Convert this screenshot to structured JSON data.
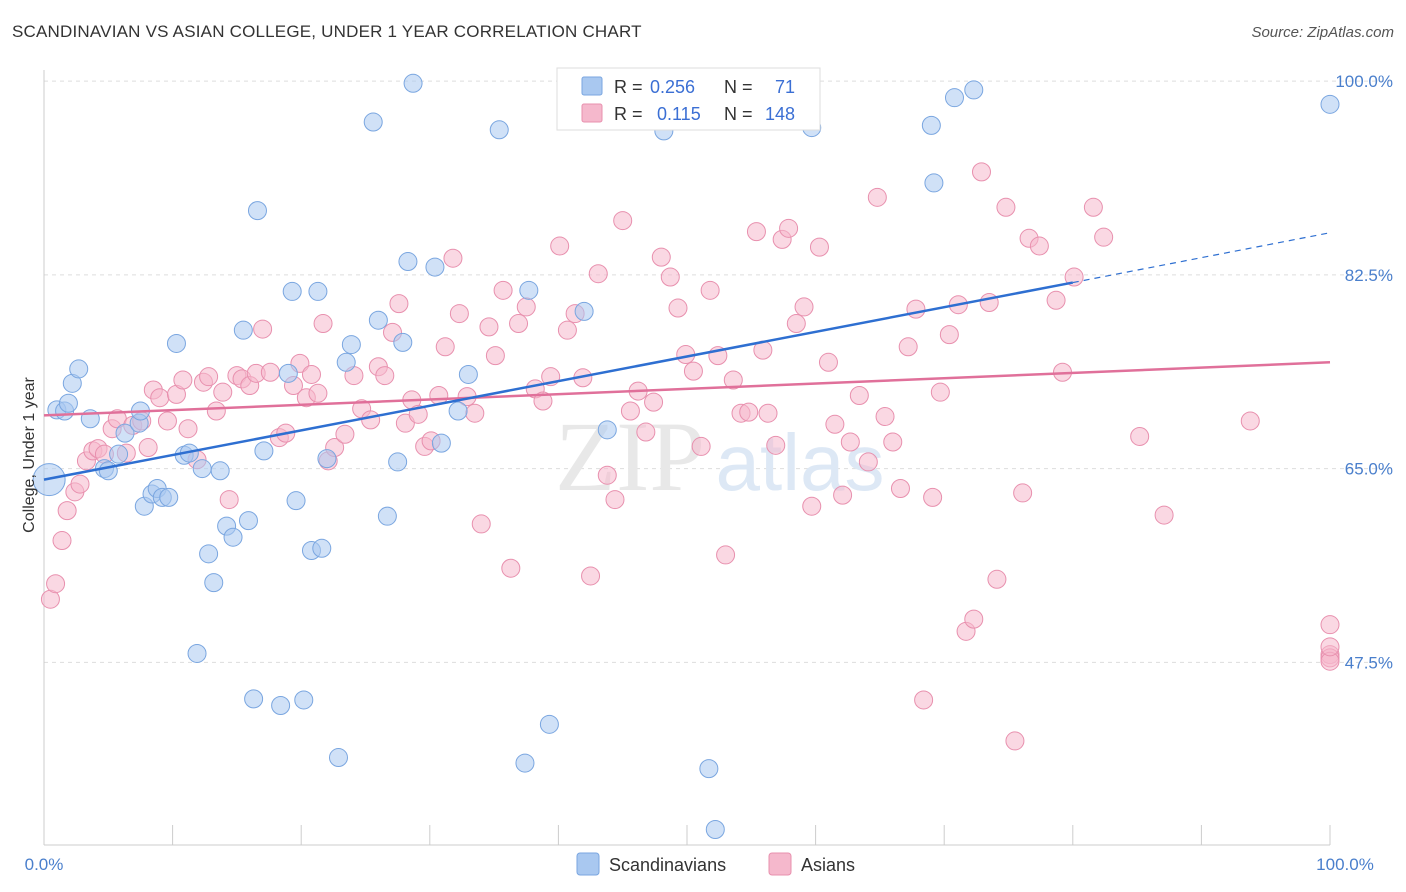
{
  "header": {
    "title": "SCANDINAVIAN VS ASIAN COLLEGE, UNDER 1 YEAR CORRELATION CHART",
    "source": "Source: ZipAtlas.com"
  },
  "watermark": {
    "text_zip": "ZIP",
    "text_atlas": "atlas"
  },
  "stats_box": {
    "rows": [
      {
        "r_label": "R =",
        "r_value": "0.256",
        "n_label": "N =",
        "n_value": "71",
        "color": "#a9c8f0"
      },
      {
        "r_label": "R =",
        "r_value": "0.115",
        "n_label": "N =",
        "n_value": "148",
        "color": "#f5b8cc"
      }
    ]
  },
  "chart_data": {
    "type": "scatter",
    "title": "SCANDINAVIAN VS ASIAN COLLEGE, UNDER 1 YEAR CORRELATION CHART",
    "xlabel": "",
    "ylabel": "College, Under 1 year",
    "xlim": [
      0,
      100
    ],
    "ylim": [
      31,
      101
    ],
    "x_tick_labels": [
      "0.0%",
      "100.0%"
    ],
    "y_ticks": [
      47.5,
      65.0,
      82.5,
      100.0
    ],
    "y_tick_labels": [
      "47.5%",
      "65.0%",
      "82.5%",
      "100.0%"
    ],
    "grid": true,
    "legend_position": "bottom-center",
    "series": [
      {
        "name": "Scandinavians",
        "color": "#a9c8f0",
        "stroke": "#7aa6e0",
        "line_color": "#2e6fd1",
        "trend": {
          "x0": 0,
          "y0": 64.0,
          "x1": 80,
          "y1": 81.8,
          "dash_to_x": 100,
          "dash_to_y": 86.3
        },
        "points": [
          [
            0.4,
            64.0
          ],
          [
            1.0,
            70.3
          ],
          [
            1.6,
            70.2
          ],
          [
            1.9,
            70.9
          ],
          [
            2.2,
            72.7
          ],
          [
            2.7,
            74.0
          ],
          [
            3.6,
            69.5
          ],
          [
            4.7,
            65.0
          ],
          [
            5.0,
            64.8
          ],
          [
            5.8,
            66.3
          ],
          [
            6.3,
            68.2
          ],
          [
            7.4,
            69.1
          ],
          [
            7.5,
            70.2
          ],
          [
            7.8,
            61.6
          ],
          [
            8.4,
            62.7
          ],
          [
            8.8,
            63.2
          ],
          [
            9.2,
            62.4
          ],
          [
            9.7,
            62.4
          ],
          [
            10.3,
            76.3
          ],
          [
            10.9,
            66.2
          ],
          [
            11.3,
            66.4
          ],
          [
            11.9,
            48.3
          ],
          [
            12.3,
            65.0
          ],
          [
            12.8,
            57.3
          ],
          [
            13.2,
            54.7
          ],
          [
            13.7,
            64.8
          ],
          [
            14.2,
            59.8
          ],
          [
            14.7,
            58.8
          ],
          [
            15.5,
            77.5
          ],
          [
            15.9,
            60.3
          ],
          [
            16.3,
            44.2
          ],
          [
            16.6,
            88.3
          ],
          [
            17.1,
            66.6
          ],
          [
            18.4,
            43.6
          ],
          [
            19.0,
            73.6
          ],
          [
            19.3,
            81.0
          ],
          [
            19.6,
            62.1
          ],
          [
            20.2,
            44.1
          ],
          [
            20.8,
            57.6
          ],
          [
            21.3,
            81.0
          ],
          [
            21.6,
            57.8
          ],
          [
            22.0,
            65.9
          ],
          [
            22.9,
            38.9
          ],
          [
            23.5,
            74.6
          ],
          [
            23.9,
            76.2
          ],
          [
            25.6,
            96.3
          ],
          [
            26.0,
            78.4
          ],
          [
            26.7,
            60.7
          ],
          [
            27.5,
            65.6
          ],
          [
            27.9,
            76.4
          ],
          [
            28.3,
            83.7
          ],
          [
            28.7,
            99.8
          ],
          [
            30.4,
            83.2
          ],
          [
            30.9,
            67.3
          ],
          [
            32.2,
            70.2
          ],
          [
            33.0,
            73.5
          ],
          [
            35.4,
            95.6
          ],
          [
            37.4,
            38.4
          ],
          [
            37.7,
            81.1
          ],
          [
            39.3,
            41.9
          ],
          [
            42.0,
            79.2
          ],
          [
            43.8,
            68.5
          ],
          [
            48.2,
            95.5
          ],
          [
            51.7,
            37.9
          ],
          [
            52.2,
            32.4
          ],
          [
            59.7,
            95.8
          ],
          [
            69.0,
            96.0
          ],
          [
            69.2,
            90.8
          ],
          [
            70.8,
            98.5
          ],
          [
            72.3,
            99.2
          ],
          [
            100.0,
            97.9
          ]
        ]
      },
      {
        "name": "Asians",
        "color": "#f5b8cc",
        "stroke": "#e890ae",
        "line_color": "#e0709a",
        "trend": {
          "x0": 0,
          "y0": 69.8,
          "x1": 100,
          "y1": 74.6
        },
        "points": [
          [
            0.5,
            53.2
          ],
          [
            0.9,
            54.6
          ],
          [
            1.4,
            58.5
          ],
          [
            1.8,
            61.2
          ],
          [
            2.4,
            62.9
          ],
          [
            2.8,
            63.6
          ],
          [
            3.3,
            65.7
          ],
          [
            3.8,
            66.6
          ],
          [
            4.2,
            66.8
          ],
          [
            4.7,
            66.3
          ],
          [
            5.3,
            68.6
          ],
          [
            5.7,
            69.5
          ],
          [
            6.4,
            66.4
          ],
          [
            6.9,
            68.9
          ],
          [
            7.6,
            69.3
          ],
          [
            8.1,
            66.9
          ],
          [
            8.5,
            72.1
          ],
          [
            9.0,
            71.4
          ],
          [
            9.6,
            69.3
          ],
          [
            10.3,
            71.7
          ],
          [
            10.8,
            73.0
          ],
          [
            11.2,
            68.6
          ],
          [
            11.9,
            65.8
          ],
          [
            12.4,
            72.8
          ],
          [
            12.8,
            73.3
          ],
          [
            13.4,
            70.2
          ],
          [
            13.9,
            71.9
          ],
          [
            14.4,
            62.2
          ],
          [
            15.0,
            73.4
          ],
          [
            15.4,
            73.1
          ],
          [
            16.0,
            72.5
          ],
          [
            16.5,
            73.6
          ],
          [
            17.0,
            77.6
          ],
          [
            17.6,
            73.7
          ],
          [
            18.3,
            67.8
          ],
          [
            18.8,
            68.2
          ],
          [
            19.4,
            72.5
          ],
          [
            19.9,
            74.5
          ],
          [
            20.4,
            71.4
          ],
          [
            20.8,
            73.5
          ],
          [
            21.3,
            71.8
          ],
          [
            21.7,
            78.1
          ],
          [
            22.1,
            65.7
          ],
          [
            22.6,
            66.9
          ],
          [
            23.4,
            68.1
          ],
          [
            24.1,
            73.4
          ],
          [
            24.7,
            70.4
          ],
          [
            25.4,
            69.4
          ],
          [
            26.0,
            74.2
          ],
          [
            26.5,
            73.4
          ],
          [
            27.1,
            77.3
          ],
          [
            27.6,
            79.9
          ],
          [
            28.1,
            69.1
          ],
          [
            28.6,
            71.2
          ],
          [
            29.1,
            69.9
          ],
          [
            29.6,
            67.0
          ],
          [
            30.1,
            67.5
          ],
          [
            30.7,
            71.6
          ],
          [
            31.2,
            76.0
          ],
          [
            31.8,
            84.0
          ],
          [
            32.3,
            79.0
          ],
          [
            32.9,
            71.5
          ],
          [
            33.5,
            70.0
          ],
          [
            34.0,
            60.0
          ],
          [
            34.6,
            77.8
          ],
          [
            35.1,
            75.2
          ],
          [
            35.7,
            81.1
          ],
          [
            36.3,
            56.0
          ],
          [
            36.9,
            78.1
          ],
          [
            37.5,
            79.6
          ],
          [
            38.2,
            72.2
          ],
          [
            38.8,
            71.1
          ],
          [
            39.4,
            73.3
          ],
          [
            40.1,
            85.1
          ],
          [
            40.7,
            77.5
          ],
          [
            41.3,
            79.0
          ],
          [
            41.9,
            73.2
          ],
          [
            42.5,
            55.3
          ],
          [
            43.1,
            82.6
          ],
          [
            43.8,
            64.4
          ],
          [
            44.4,
            62.2
          ],
          [
            45.0,
            87.4
          ],
          [
            45.6,
            70.2
          ],
          [
            46.2,
            72.0
          ],
          [
            46.8,
            68.3
          ],
          [
            47.4,
            71.0
          ],
          [
            48.0,
            84.1
          ],
          [
            48.7,
            82.3
          ],
          [
            49.3,
            79.5
          ],
          [
            49.9,
            75.3
          ],
          [
            50.5,
            73.8
          ],
          [
            51.1,
            67.0
          ],
          [
            51.8,
            81.1
          ],
          [
            52.4,
            75.2
          ],
          [
            53.0,
            57.2
          ],
          [
            53.6,
            73.0
          ],
          [
            54.2,
            70.0
          ],
          [
            54.8,
            70.1
          ],
          [
            55.4,
            86.4
          ],
          [
            55.9,
            75.7
          ],
          [
            56.3,
            70.0
          ],
          [
            56.9,
            67.1
          ],
          [
            57.4,
            85.7
          ],
          [
            57.9,
            86.7
          ],
          [
            58.5,
            78.1
          ],
          [
            59.1,
            79.6
          ],
          [
            59.7,
            61.6
          ],
          [
            60.3,
            85.0
          ],
          [
            61.0,
            74.6
          ],
          [
            61.5,
            69.0
          ],
          [
            62.1,
            62.6
          ],
          [
            62.7,
            67.4
          ],
          [
            63.4,
            71.6
          ],
          [
            64.1,
            65.6
          ],
          [
            64.8,
            89.5
          ],
          [
            65.4,
            69.7
          ],
          [
            66.0,
            67.4
          ],
          [
            66.6,
            63.2
          ],
          [
            67.2,
            76.0
          ],
          [
            67.8,
            79.4
          ],
          [
            68.4,
            44.1
          ],
          [
            69.1,
            62.4
          ],
          [
            69.7,
            71.9
          ],
          [
            70.4,
            77.1
          ],
          [
            71.1,
            79.8
          ],
          [
            71.7,
            50.3
          ],
          [
            72.3,
            51.4
          ],
          [
            72.9,
            91.8
          ],
          [
            73.5,
            80.0
          ],
          [
            74.1,
            55.0
          ],
          [
            74.8,
            88.6
          ],
          [
            75.5,
            40.4
          ],
          [
            76.1,
            62.8
          ],
          [
            76.6,
            85.8
          ],
          [
            77.4,
            85.1
          ],
          [
            78.7,
            80.2
          ],
          [
            79.2,
            73.7
          ],
          [
            80.1,
            82.3
          ],
          [
            81.6,
            88.6
          ],
          [
            82.4,
            85.9
          ],
          [
            85.2,
            67.9
          ],
          [
            87.1,
            60.8
          ],
          [
            93.8,
            69.3
          ],
          [
            100.0,
            50.9
          ],
          [
            100.0,
            48.2
          ],
          [
            100.0,
            47.9
          ],
          [
            100.0,
            47.6
          ],
          [
            100.0,
            48.9
          ]
        ]
      }
    ]
  }
}
